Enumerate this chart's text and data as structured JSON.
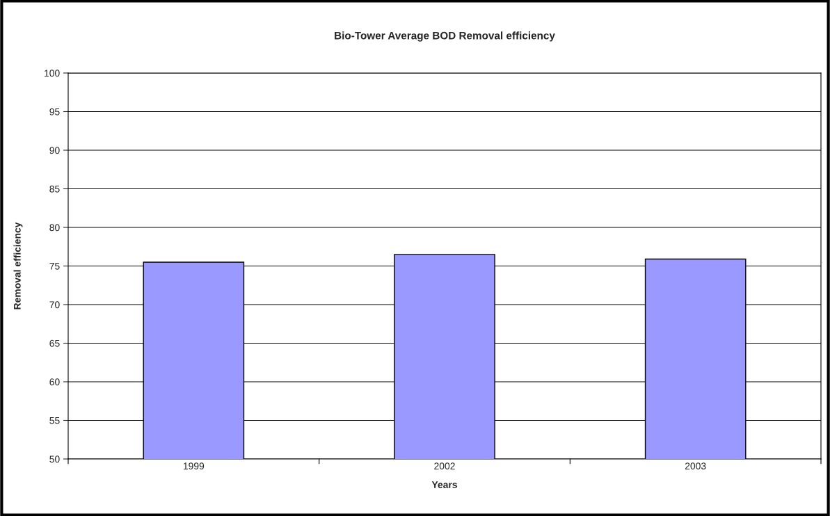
{
  "chart_data": {
    "type": "bar",
    "title": "Bio-Tower Average BOD Removal efficiency",
    "xlabel": "Years",
    "ylabel": "Removal efficiency",
    "categories": [
      "1999",
      "2002",
      "2003"
    ],
    "series": [
      {
        "color": "#9999ff",
        "values": [
          75.5,
          76.5,
          75.9
        ]
      }
    ],
    "ylim": [
      50,
      100
    ],
    "yticks": [
      50,
      55,
      60,
      65,
      70,
      75,
      80,
      85,
      90,
      95,
      100
    ],
    "grid": "y"
  }
}
